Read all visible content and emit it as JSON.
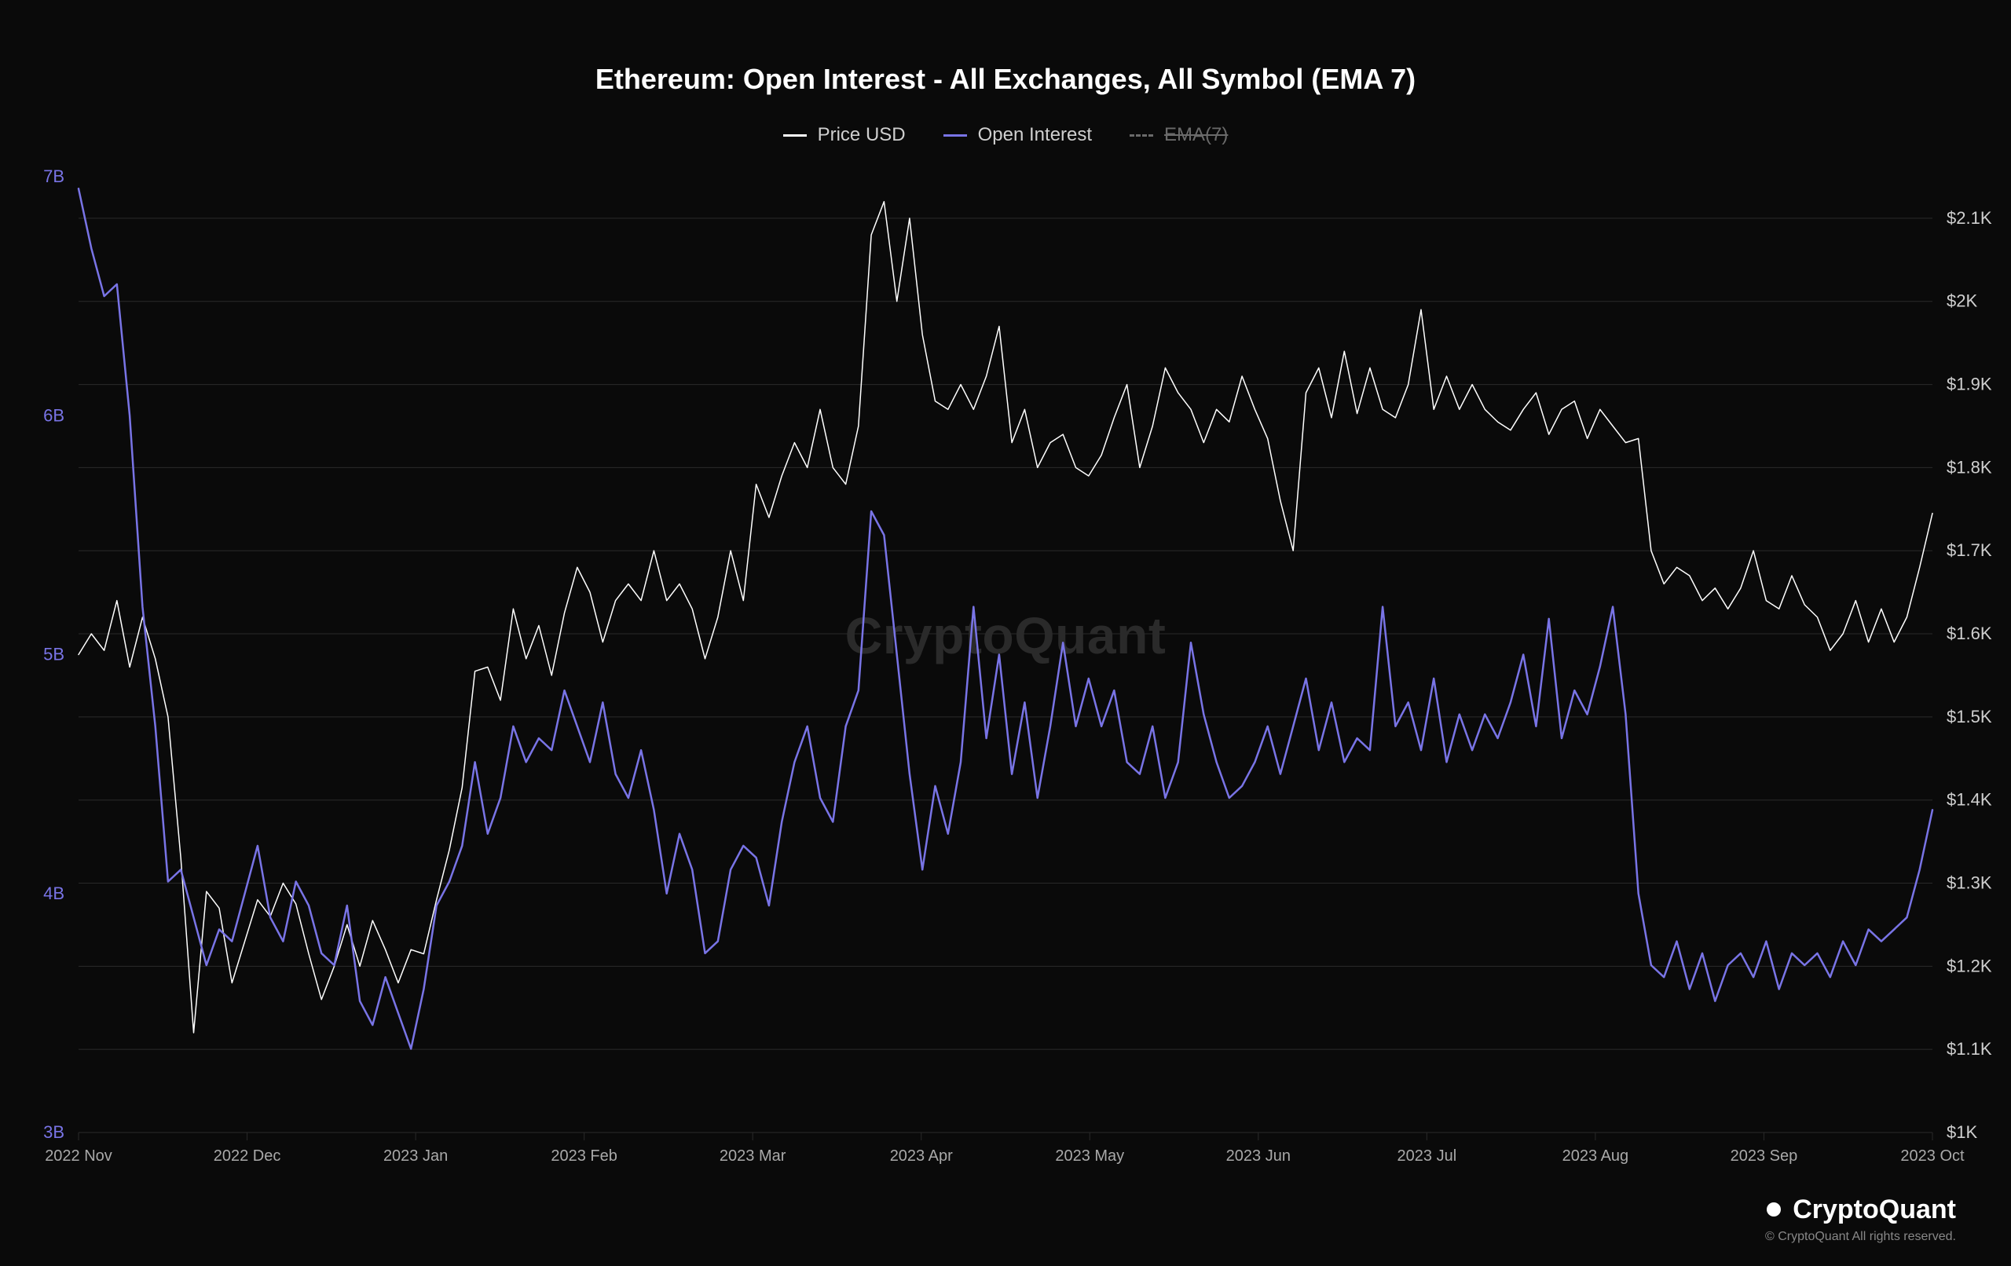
{
  "title": "Ethereum: Open Interest - All Exchanges, All Symbol (EMA 7)",
  "legend": {
    "price": {
      "label": "Price USD",
      "color": "#ffffff"
    },
    "oi": {
      "label": "Open Interest",
      "color": "#7974e6"
    },
    "ema": {
      "label": "EMA(7)",
      "color": "#6a6a6a",
      "disabled": true
    }
  },
  "watermark": "CryptoQuant",
  "brand": {
    "name": "CryptoQuant",
    "copyright": "© CryptoQuant All rights reserved."
  },
  "chart": {
    "type": "line",
    "background_color": "#0a0a0a",
    "grid_color": "#2a2a2a",
    "line_width_price": 1.5,
    "line_width_oi": 2.5,
    "x_labels": [
      "2022 Nov",
      "2022 Dec",
      "2023 Jan",
      "2023 Feb",
      "2023 Mar",
      "2023 Apr",
      "2023 May",
      "2023 Jun",
      "2023 Jul",
      "2023 Aug",
      "2023 Sep",
      "2023 Oct"
    ],
    "left_axis": {
      "min": 3,
      "max": 7,
      "ticks": [
        3,
        4,
        5,
        6,
        7
      ],
      "tick_labels": [
        "3B",
        "4B",
        "5B",
        "6B",
        "7B"
      ],
      "color": "#7974e6"
    },
    "right_axis": {
      "min": 1000,
      "max": 2150,
      "ticks": [
        1000,
        1100,
        1200,
        1300,
        1400,
        1500,
        1600,
        1700,
        1800,
        1900,
        2000,
        2100
      ],
      "tick_labels": [
        "$1K",
        "$1.1K",
        "$1.2K",
        "$1.3K",
        "$1.4K",
        "$1.5K",
        "$1.6K",
        "$1.7K",
        "$1.8K",
        "$1.9K",
        "$2K",
        "$2.1K"
      ],
      "color": "#cfcfcf"
    },
    "series_price": {
      "color": "#ffffff",
      "data": [
        1575,
        1600,
        1580,
        1640,
        1560,
        1620,
        1570,
        1500,
        1330,
        1120,
        1290,
        1270,
        1180,
        1230,
        1280,
        1260,
        1300,
        1275,
        1215,
        1160,
        1200,
        1250,
        1200,
        1255,
        1220,
        1180,
        1220,
        1215,
        1280,
        1340,
        1415,
        1555,
        1560,
        1520,
        1630,
        1570,
        1610,
        1550,
        1625,
        1680,
        1650,
        1590,
        1640,
        1660,
        1640,
        1700,
        1640,
        1660,
        1630,
        1570,
        1620,
        1700,
        1640,
        1780,
        1740,
        1790,
        1830,
        1800,
        1870,
        1800,
        1780,
        1850,
        2080,
        2120,
        2000,
        2100,
        1960,
        1880,
        1870,
        1900,
        1870,
        1910,
        1970,
        1830,
        1870,
        1800,
        1830,
        1840,
        1800,
        1790,
        1815,
        1860,
        1900,
        1800,
        1850,
        1920,
        1890,
        1870,
        1830,
        1870,
        1855,
        1910,
        1870,
        1835,
        1760,
        1700,
        1890,
        1920,
        1860,
        1940,
        1865,
        1920,
        1870,
        1860,
        1900,
        1990,
        1870,
        1910,
        1870,
        1900,
        1870,
        1855,
        1845,
        1870,
        1890,
        1840,
        1870,
        1880,
        1835,
        1870,
        1850,
        1830,
        1835,
        1700,
        1660,
        1680,
        1670,
        1640,
        1655,
        1630,
        1655,
        1700,
        1640,
        1630,
        1670,
        1635,
        1620,
        1580,
        1600,
        1640,
        1590,
        1630,
        1590,
        1620,
        1680,
        1745
      ]
    },
    "series_oi": {
      "color": "#7974e6",
      "data": [
        6.95,
        6.7,
        6.5,
        6.55,
        6.0,
        5.2,
        4.7,
        4.05,
        4.1,
        3.9,
        3.7,
        3.85,
        3.8,
        4.0,
        4.2,
        3.9,
        3.8,
        4.05,
        3.95,
        3.75,
        3.7,
        3.95,
        3.55,
        3.45,
        3.65,
        3.5,
        3.35,
        3.6,
        3.95,
        4.05,
        4.2,
        4.55,
        4.25,
        4.4,
        4.7,
        4.55,
        4.65,
        4.6,
        4.85,
        4.7,
        4.55,
        4.8,
        4.5,
        4.4,
        4.6,
        4.35,
        4.0,
        4.25,
        4.1,
        3.75,
        3.8,
        4.1,
        4.2,
        4.15,
        3.95,
        4.3,
        4.55,
        4.7,
        4.4,
        4.3,
        4.7,
        4.85,
        5.6,
        5.5,
        5.0,
        4.5,
        4.1,
        4.45,
        4.25,
        4.55,
        5.2,
        4.65,
        5.0,
        4.5,
        4.8,
        4.4,
        4.7,
        5.05,
        4.7,
        4.9,
        4.7,
        4.85,
        4.55,
        4.5,
        4.7,
        4.4,
        4.55,
        5.05,
        4.75,
        4.55,
        4.4,
        4.45,
        4.55,
        4.7,
        4.5,
        4.7,
        4.9,
        4.6,
        4.8,
        4.55,
        4.65,
        4.6,
        5.2,
        4.7,
        4.8,
        4.6,
        4.9,
        4.55,
        4.75,
        4.6,
        4.75,
        4.65,
        4.8,
        5.0,
        4.7,
        5.15,
        4.65,
        4.85,
        4.75,
        4.95,
        5.2,
        4.75,
        4.0,
        3.7,
        3.65,
        3.8,
        3.6,
        3.75,
        3.55,
        3.7,
        3.75,
        3.65,
        3.8,
        3.6,
        3.75,
        3.7,
        3.75,
        3.65,
        3.8,
        3.7,
        3.85,
        3.8,
        3.85,
        3.9,
        4.1,
        4.35
      ]
    }
  }
}
